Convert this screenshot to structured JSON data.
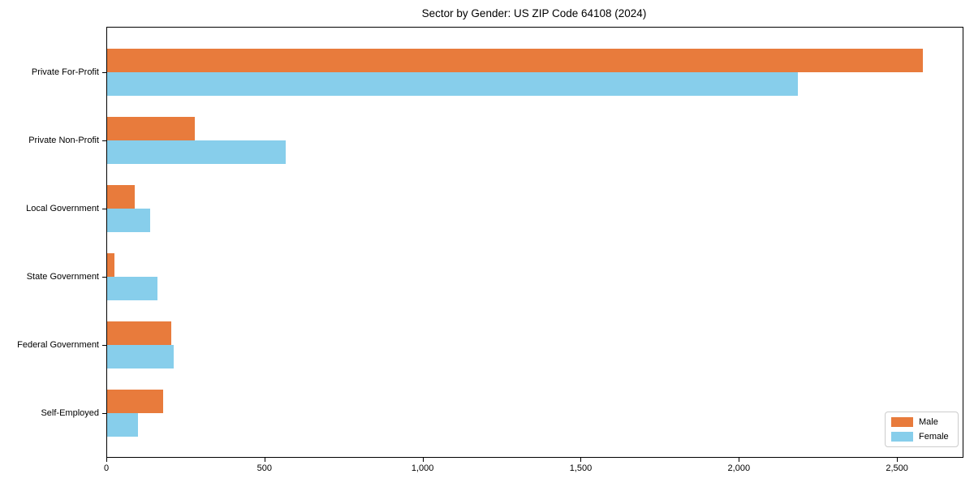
{
  "chart_data": {
    "type": "bar",
    "orientation": "horizontal",
    "title": "Sector by Gender: US ZIP Code 64108 (2024)",
    "categories": [
      "Private For-Profit",
      "Private Non-Profit",
      "Local Government",
      "State Government",
      "Federal Government",
      "Self-Employed"
    ],
    "series": [
      {
        "name": "Male",
        "color": "#e87b3c",
        "values": [
          2580,
          278,
          88,
          22,
          204,
          177
        ]
      },
      {
        "name": "Female",
        "color": "#87ceeb",
        "values": [
          2185,
          565,
          135,
          160,
          210,
          98
        ]
      }
    ],
    "xlim": [
      0,
      2705
    ],
    "xticks": [
      {
        "value": 0,
        "label": "0"
      },
      {
        "value": 500,
        "label": "500"
      },
      {
        "value": 1000,
        "label": "1,000"
      },
      {
        "value": 1500,
        "label": "1,500"
      },
      {
        "value": 2000,
        "label": "2,000"
      },
      {
        "value": 2500,
        "label": "2,500"
      }
    ],
    "grid": false,
    "legend": {
      "position": "lower right"
    }
  }
}
